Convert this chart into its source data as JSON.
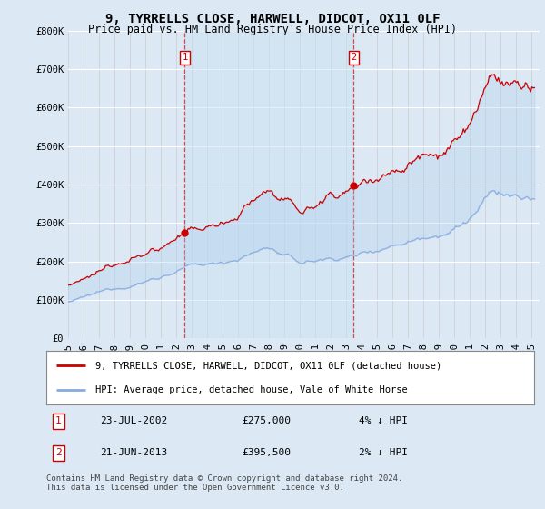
{
  "title": "9, TYRRELLS CLOSE, HARWELL, DIDCOT, OX11 0LF",
  "subtitle": "Price paid vs. HM Land Registry's House Price Index (HPI)",
  "ylim": [
    0,
    800000
  ],
  "xlim_start": 1995.0,
  "xlim_end": 2025.5,
  "background_color": "#dce9f5",
  "grid_color": "#ffffff",
  "sale1_x": 2002.55,
  "sale1_price": 275000,
  "sale2_x": 2013.47,
  "sale2_price": 395500,
  "property_line_color": "#cc0000",
  "hpi_line_color": "#88aadd",
  "fill_color": "#c8daf0",
  "shade_between_sales": true,
  "legend_property": "9, TYRRELLS CLOSE, HARWELL, DIDCOT, OX11 0LF (detached house)",
  "legend_hpi": "HPI: Average price, detached house, Vale of White Horse",
  "annotation1_date": "23-JUL-2002",
  "annotation1_price": "£275,000",
  "annotation1_hpi": "4% ↓ HPI",
  "annotation2_date": "21-JUN-2013",
  "annotation2_price": "£395,500",
  "annotation2_hpi": "2% ↓ HPI",
  "footer": "Contains HM Land Registry data © Crown copyright and database right 2024.\nThis data is licensed under the Open Government Licence v3.0.",
  "title_fontsize": 10,
  "subtitle_fontsize": 8.5,
  "tick_fontsize": 7.5,
  "legend_fontsize": 7.5,
  "annotation_fontsize": 8,
  "footer_fontsize": 6.5
}
